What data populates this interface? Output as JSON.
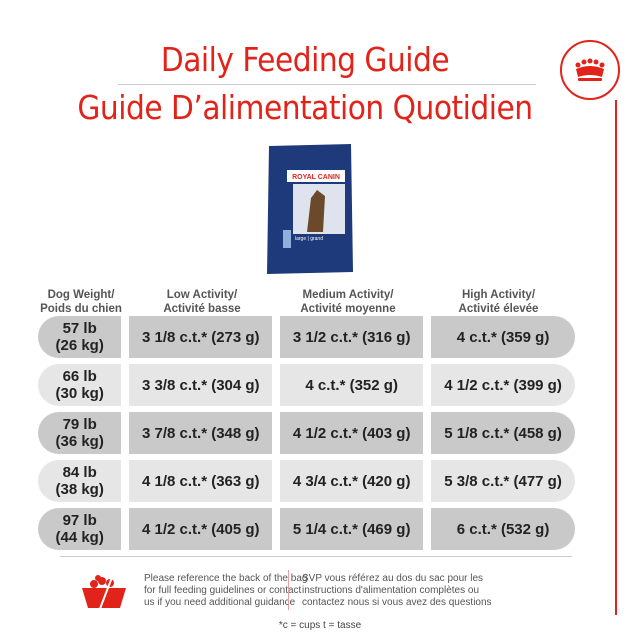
{
  "title_en": "Daily Feeding Guide",
  "title_fr": "Guide D’alimentation Quotidien",
  "brand": "ROYAL CANIN",
  "product": "large | grand adult 5+ | adulte 5+",
  "colors": {
    "accent": "#e2231a",
    "row_dark": "#c9c9c9",
    "row_light": "#e6e6e6"
  },
  "headers": [
    "Dog Weight/\nPoids du chien",
    "Low Activity/\nActivité basse",
    "Medium Activity/\nActivité moyenne",
    "High Activity/\nActivité élevée"
  ],
  "header_lines": [
    [
      "Dog Weight/",
      "Poids du chien"
    ],
    [
      "Low Activity/",
      "Activité basse"
    ],
    [
      "Medium Activity/",
      "Activité moyenne"
    ],
    [
      "High Activity/",
      "Activité élevée"
    ]
  ],
  "rows": [
    {
      "lb": "57 lb",
      "kg": "(26 kg)",
      "low": "3 1/8 c.t.* (273 g)",
      "med": "3 1/2 c.t.* (316 g)",
      "high": "4 c.t.* (359 g)"
    },
    {
      "lb": "66 lb",
      "kg": "(30 kg)",
      "low": "3 3/8 c.t.* (304 g)",
      "med": "4 c.t.* (352 g)",
      "high": "4 1/2 c.t.* (399 g)"
    },
    {
      "lb": "79 lb",
      "kg": "(36 kg)",
      "low": "3 7/8 c.t.* (348 g)",
      "med": "4 1/2 c.t.* (403 g)",
      "high": "5 1/8 c.t.* (458 g)"
    },
    {
      "lb": "84 lb",
      "kg": "(38 kg)",
      "low": "4 1/8 c.t.* (363 g)",
      "med": "4 3/4 c.t.* (420 g)",
      "high": "5 3/8 c.t.* (477 g)"
    },
    {
      "lb": "97 lb",
      "kg": "(44 kg)",
      "low": "4 1/2 c.t.* (405 g)",
      "med": "5 1/4 c.t.* (469 g)",
      "high": "6 c.t.* (532 g)"
    }
  ],
  "footer_en": [
    "Please reference the back of the bag",
    "for full feeding guidelines or contact",
    "us if you need additional guidance"
  ],
  "footer_fr": [
    "SVP vous référez au dos du sac pour les",
    "instructions d'alimentation complètes ou",
    "contactez nous si vous avez des questions"
  ],
  "note": "*c = cups t = tasse",
  "icons": [
    "crown-logo-icon",
    "food-bowl-icon"
  ]
}
